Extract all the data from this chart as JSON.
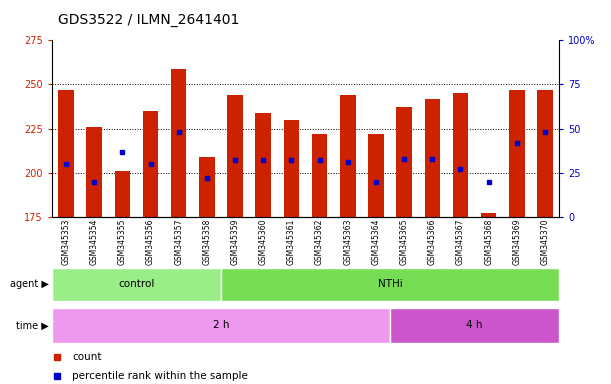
{
  "title": "GDS3522 / ILMN_2641401",
  "samples": [
    "GSM345353",
    "GSM345354",
    "GSM345355",
    "GSM345356",
    "GSM345357",
    "GSM345358",
    "GSM345359",
    "GSM345360",
    "GSM345361",
    "GSM345362",
    "GSM345363",
    "GSM345364",
    "GSM345365",
    "GSM345366",
    "GSM345367",
    "GSM345368",
    "GSM345369",
    "GSM345370"
  ],
  "counts": [
    247,
    226,
    201,
    235,
    259,
    209,
    244,
    234,
    230,
    222,
    244,
    222,
    237,
    242,
    245,
    177,
    247,
    247
  ],
  "percentile_ranks": [
    30,
    20,
    37,
    30,
    48,
    22,
    32,
    32,
    32,
    32,
    31,
    20,
    33,
    33,
    27,
    20,
    42,
    48
  ],
  "ymin": 175,
  "ymax": 275,
  "yticks": [
    175,
    200,
    225,
    250,
    275
  ],
  "right_yticks": [
    0,
    25,
    50,
    75,
    100
  ],
  "bar_color": "#cc2200",
  "dot_color": "#0000cc",
  "agent_groups": [
    {
      "label": "control",
      "start": 0,
      "end": 6,
      "color": "#99ee88"
    },
    {
      "label": "NTHi",
      "start": 6,
      "end": 18,
      "color": "#77dd55"
    }
  ],
  "time_groups": [
    {
      "label": "2 h",
      "start": 0,
      "end": 12,
      "color": "#ee99ee"
    },
    {
      "label": "4 h",
      "start": 12,
      "end": 18,
      "color": "#cc55cc"
    }
  ],
  "agent_label": "agent",
  "time_label": "time",
  "legend_count_label": "count",
  "legend_percentile_label": "percentile rank within the sample",
  "background_color": "#ffffff",
  "grid_color": "#000000",
  "title_fontsize": 10,
  "tick_fontsize": 7,
  "bar_width": 0.55
}
